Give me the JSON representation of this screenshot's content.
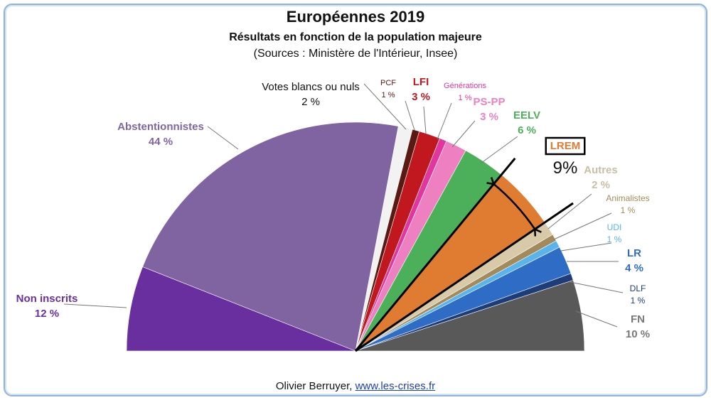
{
  "title": "Européennes 2019",
  "subtitle": "Résultats en fonction de la population majeure",
  "sources": "(Sources : Ministère de l'Intérieur, Insee)",
  "footer": {
    "author": "Olivier Berruyer,",
    "link": "www.les-crises.fr"
  },
  "chart_data": {
    "type": "pie",
    "variant": "half-pie",
    "title": "Européennes 2019",
    "subtitle": "Résultats en fonction de la population majeure",
    "slices": [
      {
        "label": "Non inscrits",
        "value_label": "12 %",
        "value": 12,
        "color": "#6a2f9e"
      },
      {
        "label": "Abstentionnistes",
        "value_label": "44 %",
        "value": 44,
        "color": "#8064a2"
      },
      {
        "label": "Votes blancs ou nuls",
        "value_label": "2 %",
        "value": 2,
        "color": "#f2f2f2"
      },
      {
        "label": "PCF",
        "value_label": "1 %",
        "value": 1,
        "color": "#5a1a14"
      },
      {
        "label": "LFI",
        "value_label": "3 %",
        "value": 3,
        "color": "#c0181e"
      },
      {
        "label": "Générations",
        "value_label": "1 %",
        "value": 1,
        "color": "#e0369e"
      },
      {
        "label": "PS-PP",
        "value_label": "3 %",
        "value": 3,
        "color": "#ee80c2"
      },
      {
        "label": "EELV",
        "value_label": "6 %",
        "value": 6,
        "color": "#4cb05a"
      },
      {
        "label": "LREM",
        "value_label": "9%",
        "value": 9,
        "color": "#e07b32"
      },
      {
        "label": "Autres",
        "value_label": "2 %",
        "value": 2,
        "color": "#d8c9a8"
      },
      {
        "label": "Animalistes",
        "value_label": "1 %",
        "value": 1,
        "color": "#a38a5c"
      },
      {
        "label": "UDI",
        "value_label": "1 %",
        "value": 1,
        "color": "#5ab4ec"
      },
      {
        "label": "LR",
        "value_label": "4 %",
        "value": 4,
        "color": "#2f6cc6"
      },
      {
        "label": "DLF",
        "value_label": "1 %",
        "value": 1,
        "color": "#1d3c78"
      },
      {
        "label": "FN",
        "value_label": "10 %",
        "value": 10,
        "color": "#595959"
      }
    ]
  }
}
